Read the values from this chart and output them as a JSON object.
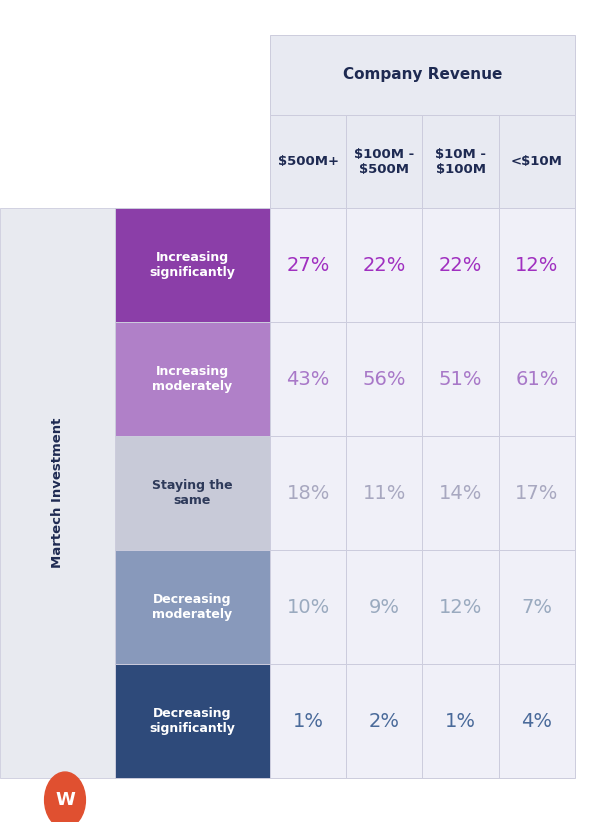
{
  "title": "Company Revenue",
  "col_headers": [
    "$500M+",
    "$100M -\n$500M",
    "$10M -\n$100M",
    "<$10M"
  ],
  "row_labels": [
    "Increasing\nsignificantly",
    "Increasing\nmoderately",
    "Staying the\nsame",
    "Decreasing\nmoderately",
    "Decreasing\nsignificantly"
  ],
  "row_colors": [
    "#8B3EA8",
    "#B080C8",
    "#C8CAD8",
    "#8899BB",
    "#2E4A7A"
  ],
  "row_label_text_colors": [
    "#FFFFFF",
    "#FFFFFF",
    "#2E3A5A",
    "#FFFFFF",
    "#FFFFFF"
  ],
  "values": [
    [
      "27%",
      "22%",
      "22%",
      "12%"
    ],
    [
      "43%",
      "56%",
      "51%",
      "61%"
    ],
    [
      "18%",
      "11%",
      "14%",
      "17%"
    ],
    [
      "10%",
      "9%",
      "12%",
      "7%"
    ],
    [
      "1%",
      "2%",
      "1%",
      "4%"
    ]
  ],
  "value_colors_by_row": [
    "#A030C0",
    "#A878C8",
    "#A8A8C0",
    "#9AAABF",
    "#4A6A9A"
  ],
  "ylabel": "Martech Investment",
  "bg_color": "#FFFFFF",
  "header_bg": "#E8EAF2",
  "cell_bg": "#F0F0F8",
  "grid_color": "#CCCCDD",
  "title_color": "#1E2A52",
  "col_header_color": "#1E2A52",
  "ylabel_color": "#1E2A52",
  "watermark_color": "#E05030",
  "watermark_text": "W",
  "martech_label_bg": "#E8EAF0"
}
